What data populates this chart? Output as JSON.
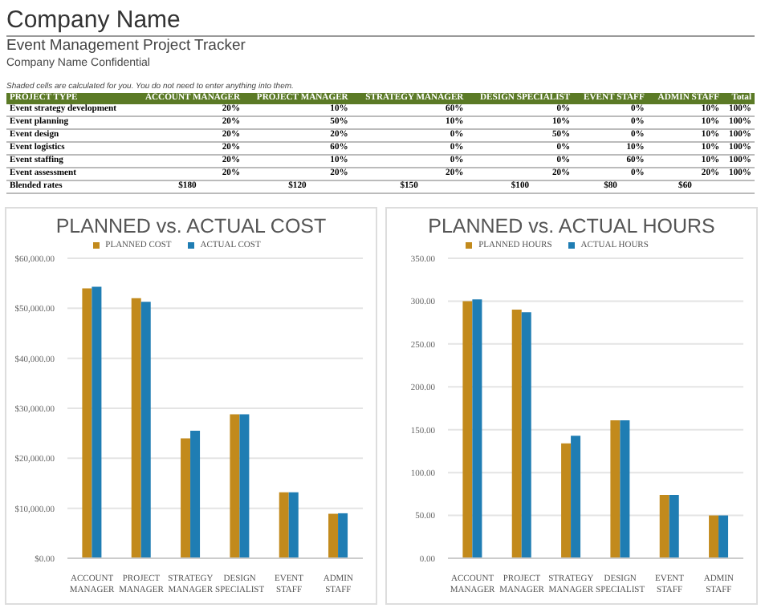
{
  "chart_data": [
    {
      "type": "heatmap",
      "title": "Company Name",
      "subtitle": "Event Management Project Tracker",
      "annotations": [
        "Company Name Confidential",
        "Shaded cells are calculated for you. You do not need to enter anything into them."
      ],
      "ylabel": "PROJECT TYPE",
      "categories": [
        "ACCOUNT MANAGER",
        "PROJECT MANAGER",
        "STRATEGY MANAGER",
        "DESIGN SPECIALIST",
        "EVENT STAFF",
        "ADMIN STAFF",
        "Total"
      ],
      "y_categories": [
        "Event strategy development",
        "Event planning",
        "Event design",
        "Event logistics",
        "Event staffing",
        "Event assessment",
        "Blended rates"
      ],
      "cells": [
        [
          20,
          10,
          60,
          0,
          0,
          10,
          100
        ],
        [
          20,
          50,
          10,
          10,
          0,
          10,
          100
        ],
        [
          20,
          20,
          0,
          50,
          0,
          10,
          100
        ],
        [
          20,
          60,
          0,
          0,
          10,
          10,
          100
        ],
        [
          20,
          10,
          0,
          0,
          60,
          10,
          100
        ],
        [
          20,
          20,
          20,
          20,
          0,
          20,
          100
        ],
        [
          180,
          120,
          150,
          100,
          80,
          60,
          null
        ]
      ],
      "cell_labels": [
        [
          "20%",
          "10%",
          "60%",
          "0%",
          "0%",
          "10%",
          "100%"
        ],
        [
          "20%",
          "50%",
          "10%",
          "10%",
          "0%",
          "10%",
          "100%"
        ],
        [
          "20%",
          "20%",
          "0%",
          "50%",
          "0%",
          "10%",
          "100%"
        ],
        [
          "20%",
          "60%",
          "0%",
          "0%",
          "10%",
          "10%",
          "100%"
        ],
        [
          "20%",
          "10%",
          "0%",
          "0%",
          "60%",
          "10%",
          "100%"
        ],
        [
          "20%",
          "20%",
          "20%",
          "20%",
          "0%",
          "20%",
          "100%"
        ],
        [
          "$180",
          "$120",
          "$150",
          "$100",
          "$80",
          "$60",
          null
        ]
      ]
    },
    {
      "type": "bar",
      "title": "PLANNED vs. ACTUAL COST",
      "categories": [
        "ACCOUNT MANAGER",
        "PROJECT MANAGER",
        "STRATEGY MANAGER",
        "DESIGN SPECIALIST",
        "EVENT STAFF",
        "ADMIN STAFF"
      ],
      "series": [
        {
          "name": "PLANNED COST",
          "color": "#c28a1c",
          "values": [
            54000,
            52000,
            24000,
            28800,
            13200,
            8900
          ]
        },
        {
          "name": "ACTUAL COST",
          "color": "#1f7db3",
          "values": [
            54300,
            51300,
            25500,
            28800,
            13200,
            9000
          ]
        }
      ],
      "ylim": [
        0,
        60000
      ],
      "yticks": [
        {
          "value": 0,
          "label": "$0.00"
        },
        {
          "value": 10000,
          "label": "$10,000.00"
        },
        {
          "value": 20000,
          "label": "$20,000.00"
        },
        {
          "value": 30000,
          "label": "$30,000.00"
        },
        {
          "value": 40000,
          "label": "$40,000.00"
        },
        {
          "value": 50000,
          "label": "$50,000.00"
        },
        {
          "value": 60000,
          "label": "$60,000.00"
        }
      ],
      "grid": "y",
      "legend": "top"
    },
    {
      "type": "bar",
      "title": "PLANNED vs. ACTUAL HOURS",
      "categories": [
        "ACCOUNT MANAGER",
        "PROJECT MANAGER",
        "STRATEGY MANAGER",
        "DESIGN SPECIALIST",
        "EVENT STAFF",
        "ADMIN STAFF"
      ],
      "series": [
        {
          "name": "PLANNED HOURS",
          "color": "#c28a1c",
          "values": [
            300,
            290,
            134,
            161,
            74,
            50
          ]
        },
        {
          "name": "ACTUAL HOURS",
          "color": "#1f7db3",
          "values": [
            302,
            287,
            143,
            161,
            74,
            50
          ]
        }
      ],
      "ylim": [
        0,
        350
      ],
      "yticks": [
        {
          "value": 0,
          "label": "0.00"
        },
        {
          "value": 50,
          "label": "50.00"
        },
        {
          "value": 100,
          "label": "100.00"
        },
        {
          "value": 150,
          "label": "150.00"
        },
        {
          "value": 200,
          "label": "200.00"
        },
        {
          "value": 250,
          "label": "250.00"
        },
        {
          "value": 300,
          "label": "300.00"
        },
        {
          "value": 350,
          "label": "350.00"
        }
      ],
      "grid": "y",
      "legend": "top"
    }
  ]
}
